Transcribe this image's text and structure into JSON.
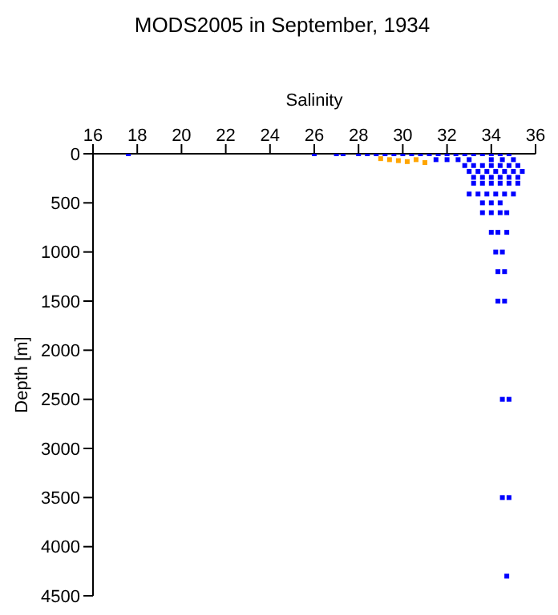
{
  "chart_data": {
    "type": "scatter",
    "title": "MODS2005 in September, 1934",
    "xlabel": "Salinity",
    "ylabel": "Depth [m]",
    "xlim": [
      16,
      36
    ],
    "xticks": [
      16,
      18,
      20,
      22,
      24,
      26,
      28,
      30,
      32,
      34,
      36
    ],
    "ylim": [
      4500,
      0
    ],
    "yticks": [
      0,
      500,
      1000,
      1500,
      2000,
      2500,
      3000,
      3500,
      4000,
      4500
    ],
    "marker": "square",
    "series": [
      {
        "color": "#0000ff",
        "x": [
          17.6,
          26.0,
          27.0,
          27.3,
          28.0,
          28.4,
          28.8,
          29.2,
          29.6,
          30.0,
          30.4,
          30.8,
          31.2,
          31.6,
          32.0,
          32.4,
          32.8,
          33.2,
          33.6,
          34.0,
          34.4,
          34.8,
          31.5,
          32.0,
          32.5,
          33.0,
          34.0,
          34.5,
          35.0,
          32.8,
          33.2,
          33.6,
          34.0,
          34.4,
          34.8,
          35.2,
          33.0,
          33.4,
          33.8,
          34.2,
          34.6,
          35.0,
          35.4,
          33.2,
          33.6,
          34.0,
          34.4,
          34.8,
          35.2,
          33.2,
          33.6,
          34.0,
          34.4,
          34.8,
          35.2,
          33.0,
          33.4,
          33.8,
          34.2,
          34.6,
          35.0,
          33.6,
          34.0,
          34.4,
          33.6,
          34.0,
          34.4,
          34.7,
          34.0,
          34.3,
          34.7,
          34.2,
          34.5,
          34.3,
          34.6,
          34.3,
          34.6,
          34.5,
          34.8,
          34.5,
          34.8,
          34.7
        ],
        "values": [
          0,
          0,
          0,
          0,
          0,
          0,
          0,
          0,
          0,
          0,
          0,
          0,
          0,
          0,
          0,
          0,
          0,
          0,
          0,
          0,
          0,
          0,
          60,
          60,
          60,
          60,
          60,
          60,
          60,
          120,
          120,
          120,
          120,
          120,
          120,
          120,
          180,
          180,
          180,
          180,
          180,
          180,
          180,
          240,
          240,
          240,
          240,
          240,
          240,
          300,
          300,
          300,
          300,
          300,
          300,
          410,
          410,
          410,
          410,
          410,
          410,
          500,
          500,
          500,
          600,
          600,
          600,
          600,
          800,
          800,
          800,
          1000,
          1000,
          1200,
          1200,
          1500,
          1500,
          2500,
          2500,
          3500,
          3500,
          4300
        ]
      },
      {
        "color": "#ffa500",
        "x": [
          29.0,
          29.4,
          29.8,
          30.2,
          30.6,
          31.0
        ],
        "values": [
          50,
          60,
          70,
          80,
          60,
          90
        ]
      }
    ]
  }
}
